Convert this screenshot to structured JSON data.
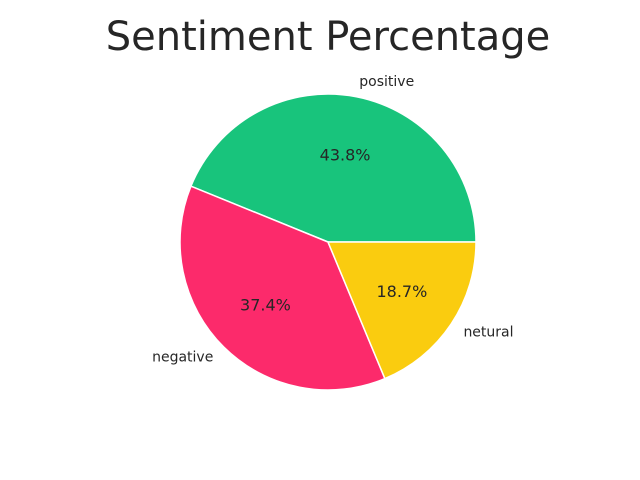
{
  "chart_data": {
    "type": "pie",
    "title": "Sentiment Percentage",
    "start_angle_deg": 0,
    "direction": "counterclockwise",
    "slices": [
      {
        "label": "positive",
        "value": 43.8,
        "pct_label": "43.8%",
        "color": "#18c47c"
      },
      {
        "label": "negative",
        "value": 37.4,
        "pct_label": "37.4%",
        "color": "#fc2a6b"
      },
      {
        "label": "netural",
        "value": 18.7,
        "pct_label": "18.7%",
        "color": "#facc0f"
      }
    ]
  }
}
